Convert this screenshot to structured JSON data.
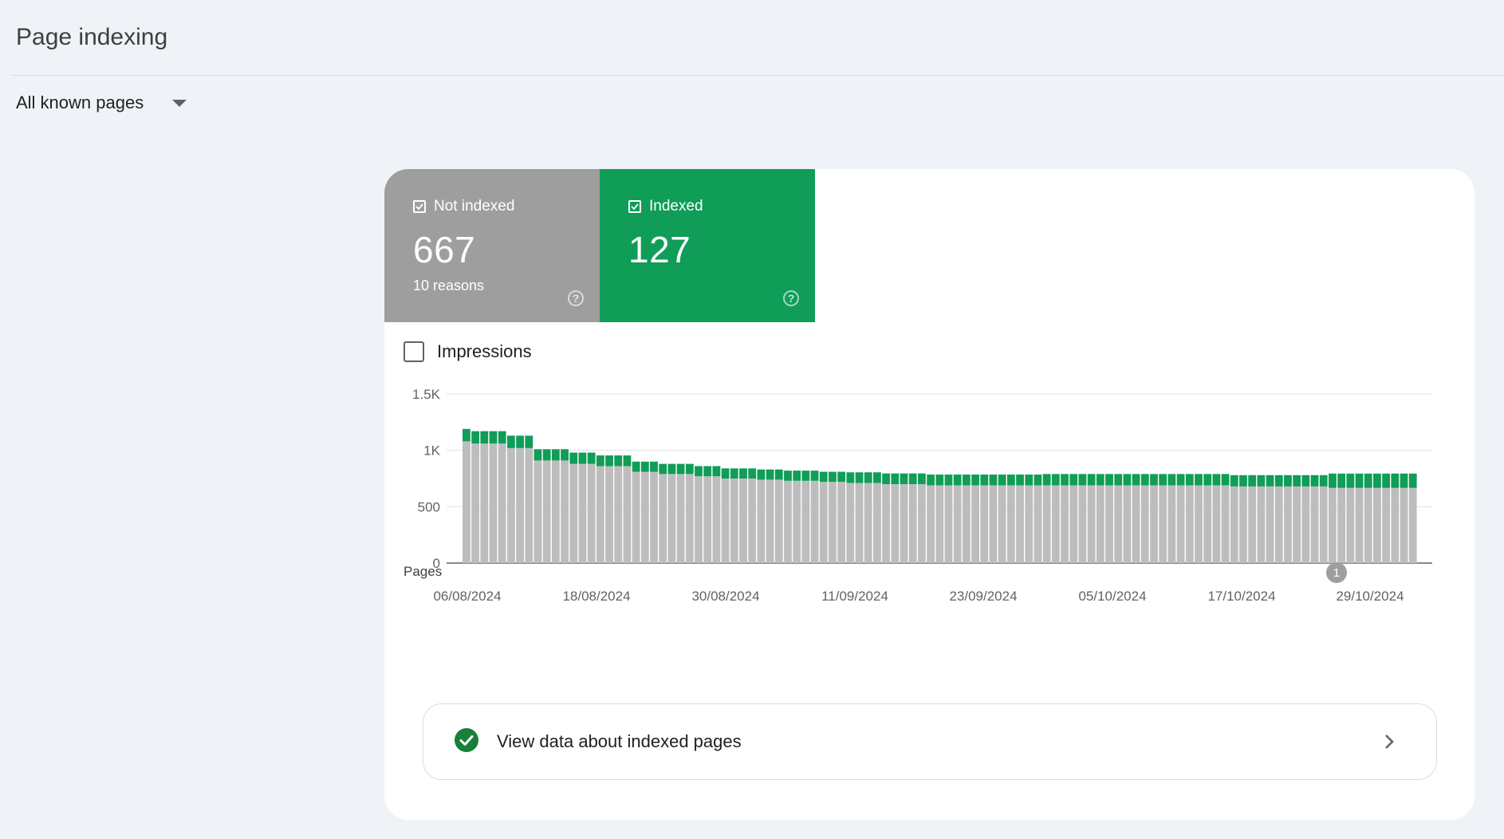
{
  "header": {
    "title": "Page indexing"
  },
  "filter": {
    "label": "All known pages"
  },
  "tiles": {
    "not_indexed": {
      "label": "Not indexed",
      "value": "667",
      "sub": "10 reasons",
      "color": "#9e9e9e"
    },
    "indexed": {
      "label": "Indexed",
      "value": "127",
      "color": "#0f9d58"
    }
  },
  "impressions": {
    "label": "Impressions"
  },
  "chart_data": {
    "type": "bar",
    "stacked": true,
    "ylabel": "Pages",
    "ylim": [
      0,
      1500
    ],
    "yticks": [
      "0",
      "500",
      "1K",
      "1.5K"
    ],
    "x_tick_labels": [
      "06/08/2024",
      "18/08/2024",
      "30/08/2024",
      "11/09/2024",
      "23/09/2024",
      "05/10/2024",
      "17/10/2024",
      "29/10/2024"
    ],
    "annotation": "1",
    "series": [
      {
        "name": "Not indexed",
        "color": "#bdbdbd",
        "values": [
          1080,
          1060,
          1060,
          1060,
          1060,
          1020,
          1020,
          1020,
          910,
          910,
          910,
          910,
          880,
          880,
          880,
          860,
          860,
          860,
          860,
          810,
          810,
          810,
          790,
          790,
          790,
          790,
          770,
          770,
          770,
          750,
          750,
          750,
          750,
          740,
          740,
          740,
          730,
          730,
          730,
          730,
          720,
          720,
          720,
          710,
          710,
          710,
          710,
          700,
          700,
          700,
          700,
          700,
          690,
          690,
          690,
          690,
          690,
          690,
          690,
          690,
          690,
          690,
          690,
          690,
          690,
          690,
          690,
          690,
          690,
          690,
          690,
          690,
          690,
          690,
          690,
          690,
          690,
          690,
          690,
          690,
          690,
          690,
          690,
          690,
          690,
          690,
          680,
          680,
          680,
          680,
          680,
          680,
          680,
          680,
          680,
          680,
          680,
          667,
          667,
          667,
          667,
          667,
          667,
          667,
          667,
          667,
          667
        ]
      },
      {
        "name": "Indexed",
        "color": "#0f9d58",
        "values": [
          110,
          110,
          110,
          110,
          110,
          110,
          110,
          110,
          100,
          100,
          100,
          100,
          100,
          100,
          100,
          95,
          95,
          95,
          95,
          90,
          90,
          90,
          90,
          90,
          90,
          90,
          90,
          90,
          90,
          90,
          90,
          90,
          90,
          90,
          90,
          90,
          90,
          90,
          90,
          90,
          90,
          90,
          90,
          95,
          95,
          95,
          95,
          95,
          95,
          95,
          95,
          95,
          95,
          95,
          95,
          95,
          95,
          95,
          95,
          95,
          95,
          95,
          95,
          95,
          95,
          100,
          100,
          100,
          100,
          100,
          100,
          100,
          100,
          100,
          100,
          100,
          100,
          100,
          100,
          100,
          100,
          100,
          100,
          100,
          100,
          100,
          100,
          100,
          100,
          100,
          100,
          100,
          100,
          100,
          100,
          100,
          100,
          127,
          127,
          127,
          127,
          127,
          127,
          127,
          127,
          127,
          127
        ]
      }
    ]
  },
  "link": {
    "label": "View data about indexed pages"
  },
  "icons": {
    "dropdown": "caret-down-icon",
    "help": "help-circle-icon",
    "check": "check-circle-icon",
    "chevron": "chevron-right-icon"
  }
}
